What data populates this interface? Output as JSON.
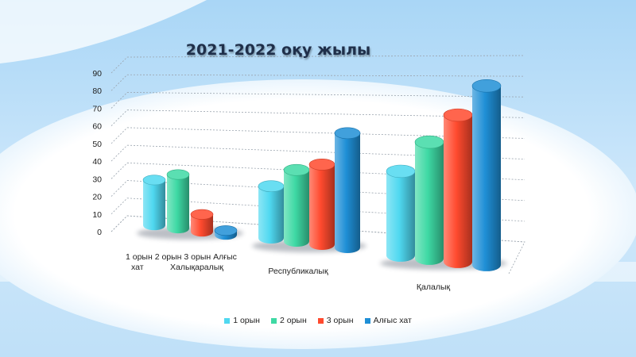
{
  "chart_data": {
    "type": "bar",
    "title": "2021-2022 оқу жылы",
    "categories": [
      "Халықаралық",
      "Республикалық",
      "Қалалық"
    ],
    "category_label_lines": [
      [
        "1 орын 2 орын 3 орын Алғыс",
        "хат",
        "Халықаралық"
      ],
      [
        "Республикалық"
      ],
      [
        "Қалалық"
      ]
    ],
    "series": [
      {
        "name": "1 орын",
        "values": [
          21,
          24,
          39
        ],
        "color": "#4fd8f0"
      },
      {
        "name": "2 орын",
        "values": [
          25,
          33,
          54
        ],
        "color": "#3ed9a4"
      },
      {
        "name": "3 орын",
        "values": [
          8,
          37,
          68
        ],
        "color": "#ff4a2e"
      },
      {
        "name": "Алғыс хат",
        "values": [
          2,
          53,
          83
        ],
        "color": "#1f8fd6"
      }
    ],
    "ylim": [
      0,
      90
    ],
    "yticks": [
      0,
      10,
      20,
      30,
      40,
      50,
      60,
      70,
      80,
      90
    ],
    "grid": true,
    "legend_position": "bottom",
    "xlabel": "",
    "ylabel": ""
  }
}
